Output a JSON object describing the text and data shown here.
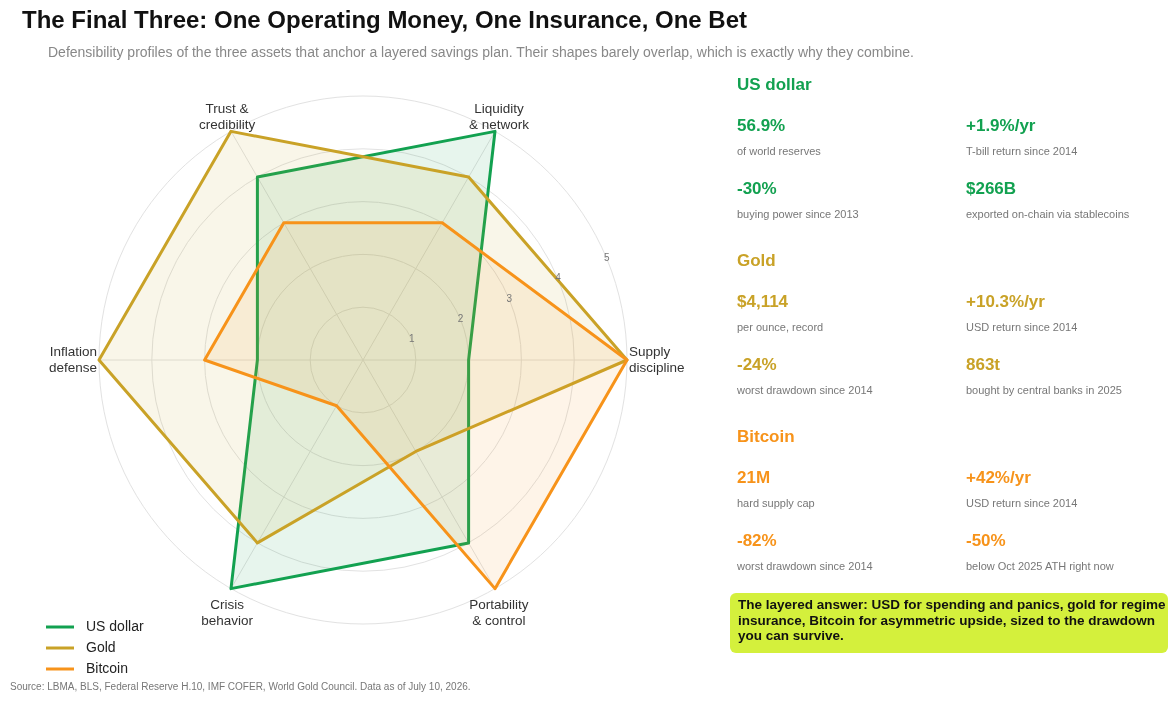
{
  "chart_data": [
    {
      "type": "radar",
      "title": "The Final Three: One Operating Money, One Insurance, One Bet",
      "subtitle": "Defensibility profiles of the three assets that anchor a layered savings plan. Their shapes barely overlap, which is exactly why they combine.",
      "categories": [
        "Liquidity\n& network",
        "Supply\ndiscipline",
        "Portability\n& control",
        "Crisis\nbehavior",
        "Inflation\ndefense",
        "Trust &\ncredibility"
      ],
      "series": [
        {
          "name": "US dollar",
          "color": "#12a150",
          "values": [
            5,
            2,
            4,
            5,
            2,
            4
          ]
        },
        {
          "name": "Gold",
          "color": "#c9a227",
          "values": [
            4,
            5,
            2,
            4,
            5,
            5
          ]
        },
        {
          "name": "Bitcoin",
          "color": "#f7931a",
          "values": [
            3,
            5,
            5,
            1,
            3,
            3
          ]
        }
      ],
      "ylim": [
        0,
        5
      ],
      "yticks": [
        1,
        2,
        3,
        4,
        5
      ],
      "grid": true,
      "legend": "bottom left",
      "annotations": [
        "Source: LBMA, BLS, Federal Reserve H.10, IMF COFER, World Gold Council. Data as of July 10, 2026."
      ]
    },
    {
      "type": "other",
      "title": "US dollar",
      "colors": [
        "#12a150"
      ],
      "annotations": [
        "56.9%",
        "of world reserves",
        "+1.9%/yr",
        "T-bill return since 2014",
        "-30%",
        "buying power since 2013",
        "$266B",
        "exported on-chain via stablecoins"
      ]
    },
    {
      "type": "other",
      "title": "Gold",
      "colors": [
        "#c9a227"
      ],
      "annotations": [
        "$4,114",
        "per ounce, record",
        "+10.3%/yr",
        "USD return since 2014",
        "-24%",
        "worst drawdown since 2014",
        "863t",
        "bought by central banks in 2025"
      ]
    },
    {
      "type": "other",
      "title": "Bitcoin",
      "colors": [
        "#f7931a"
      ],
      "annotations": [
        "21M",
        "hard supply cap",
        "+42%/yr",
        "USD return since 2014",
        "-82%",
        "worst drawdown since 2014",
        "-50%",
        "below Oct 2025 ATH right now"
      ]
    },
    {
      "type": "other",
      "colors": [
        "#d4f03c"
      ],
      "annotations": [
        "The layered answer: USD for spending and panics, gold for regime insurance, Bitcoin for asymmetric upside, sized to the drawdown you can survive."
      ]
    }
  ]
}
